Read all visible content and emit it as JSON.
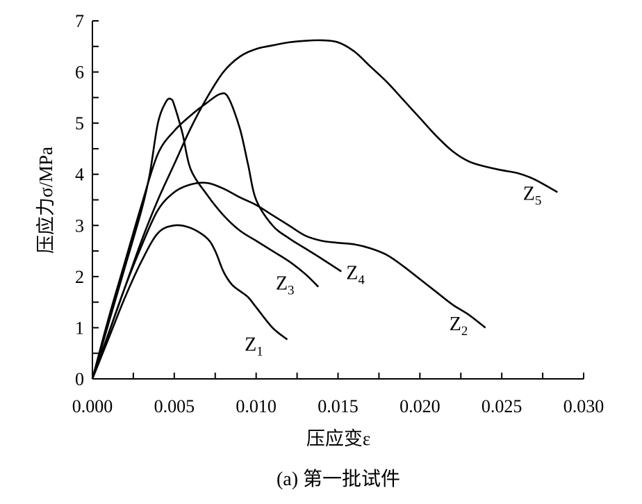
{
  "chart_data": {
    "type": "line",
    "title": "(a) 第一批试件",
    "xlabel": "压应变ε",
    "ylabel": "压应力σ/MPa",
    "xlim": [
      0,
      0.03
    ],
    "ylim": [
      0,
      7
    ],
    "xticks": [
      "0.000",
      "0.005",
      "0.010",
      "0.015",
      "0.020",
      "0.025",
      "0.030"
    ],
    "xtick_values": [
      0,
      0.005,
      0.01,
      0.015,
      0.02,
      0.025,
      0.03
    ],
    "yticks": [
      "0",
      "1",
      "2",
      "3",
      "4",
      "5",
      "6",
      "7"
    ],
    "ytick_values": [
      0,
      1,
      2,
      3,
      4,
      5,
      6,
      7
    ],
    "minor_x_step": 0.0025,
    "minor_y_step": 0.5,
    "grid": false,
    "series": [
      {
        "name": "Z",
        "sub": "1",
        "label_at": [
          0.0093,
          0.55
        ],
        "x": [
          0,
          0.001,
          0.002,
          0.003,
          0.004,
          0.005,
          0.006,
          0.007,
          0.0075,
          0.008,
          0.0085,
          0.009,
          0.0095,
          0.01,
          0.011,
          0.0119
        ],
        "y": [
          0,
          0.8,
          1.6,
          2.3,
          2.85,
          3.0,
          2.95,
          2.75,
          2.5,
          2.1,
          1.85,
          1.72,
          1.6,
          1.4,
          1.0,
          0.77
        ]
      },
      {
        "name": "Z",
        "sub": "2",
        "label_at": [
          0.0218,
          0.95
        ],
        "x": [
          0,
          0.001,
          0.002,
          0.003,
          0.004,
          0.005,
          0.006,
          0.007,
          0.008,
          0.009,
          0.01,
          0.011,
          0.012,
          0.013,
          0.014,
          0.015,
          0.016,
          0.017,
          0.018,
          0.019,
          0.02,
          0.021,
          0.022,
          0.023,
          0.024
        ],
        "y": [
          0,
          0.9,
          1.8,
          2.6,
          3.3,
          3.65,
          3.8,
          3.83,
          3.72,
          3.55,
          3.4,
          3.2,
          3.0,
          2.8,
          2.7,
          2.66,
          2.63,
          2.55,
          2.42,
          2.2,
          1.95,
          1.7,
          1.45,
          1.25,
          1.0
        ]
      },
      {
        "name": "Z",
        "sub": "3",
        "label_at": [
          0.0112,
          1.75
        ],
        "x": [
          0,
          0.001,
          0.002,
          0.003,
          0.0035,
          0.004,
          0.0045,
          0.0048,
          0.005,
          0.0055,
          0.006,
          0.007,
          0.008,
          0.009,
          0.01,
          0.011,
          0.012,
          0.013,
          0.0138
        ],
        "y": [
          0,
          1.1,
          2.2,
          3.3,
          4.0,
          5.0,
          5.42,
          5.47,
          5.35,
          4.8,
          4.1,
          3.6,
          3.2,
          2.9,
          2.7,
          2.5,
          2.3,
          2.05,
          1.8
        ]
      },
      {
        "name": "Z",
        "sub": "4",
        "label_at": [
          0.0155,
          1.95
        ],
        "x": [
          0,
          0.001,
          0.002,
          0.003,
          0.004,
          0.005,
          0.006,
          0.007,
          0.0078,
          0.0083,
          0.009,
          0.0095,
          0.01,
          0.011,
          0.012,
          0.013,
          0.014,
          0.0152
        ],
        "y": [
          0,
          1.2,
          2.3,
          3.4,
          4.4,
          4.85,
          5.15,
          5.4,
          5.57,
          5.5,
          4.9,
          4.2,
          3.5,
          3.0,
          2.75,
          2.55,
          2.35,
          2.1
        ]
      },
      {
        "name": "Z",
        "sub": "5",
        "label_at": [
          0.0263,
          3.5
        ],
        "x": [
          0,
          0.001,
          0.002,
          0.003,
          0.004,
          0.005,
          0.006,
          0.007,
          0.008,
          0.009,
          0.01,
          0.011,
          0.012,
          0.013,
          0.014,
          0.015,
          0.016,
          0.017,
          0.018,
          0.019,
          0.02,
          0.021,
          0.022,
          0.023,
          0.024,
          0.025,
          0.026,
          0.027,
          0.0284
        ],
        "y": [
          0,
          0.9,
          1.8,
          2.7,
          3.5,
          4.2,
          4.9,
          5.5,
          6.0,
          6.3,
          6.45,
          6.52,
          6.58,
          6.61,
          6.62,
          6.58,
          6.4,
          6.1,
          5.8,
          5.45,
          5.1,
          4.75,
          4.45,
          4.25,
          4.15,
          4.08,
          4.02,
          3.9,
          3.65
        ]
      }
    ]
  }
}
